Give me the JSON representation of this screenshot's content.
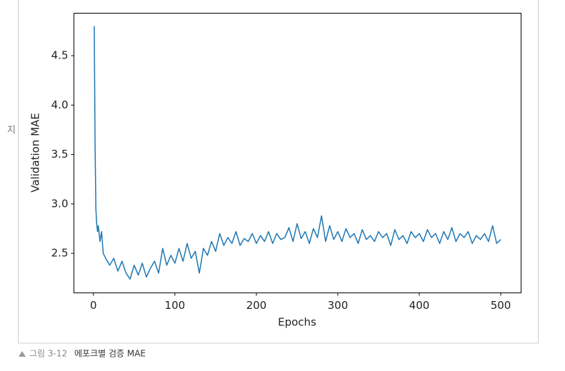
{
  "side_text": "지",
  "caption": {
    "label": "그림 3-12",
    "text": "에포크별 검증 MAE"
  },
  "chart_data": {
    "type": "line",
    "xlabel": "Epochs",
    "ylabel": "Validation MAE",
    "xlim": [
      -23.95,
      524.95
    ],
    "ylim": [
      2.1,
      4.93
    ],
    "xticks": [
      0,
      100,
      200,
      300,
      400,
      500
    ],
    "yticks": [
      2.5,
      {
        "value": 3,
        "label": "3.0"
      },
      3.5,
      {
        "value": 4,
        "label": "4.0"
      },
      4.5
    ],
    "x": [
      1,
      2,
      3,
      4,
      5,
      6,
      8,
      10,
      12,
      15,
      20,
      25,
      30,
      35,
      40,
      45,
      50,
      55,
      60,
      65,
      70,
      75,
      80,
      85,
      90,
      95,
      100,
      105,
      110,
      115,
      120,
      125,
      130,
      135,
      140,
      145,
      150,
      155,
      160,
      165,
      170,
      175,
      180,
      185,
      190,
      195,
      200,
      205,
      210,
      215,
      220,
      225,
      230,
      235,
      240,
      245,
      250,
      255,
      260,
      265,
      270,
      275,
      280,
      285,
      290,
      295,
      300,
      305,
      310,
      315,
      320,
      325,
      330,
      335,
      340,
      345,
      350,
      355,
      360,
      365,
      370,
      375,
      380,
      385,
      390,
      395,
      400,
      405,
      410,
      415,
      420,
      425,
      430,
      435,
      440,
      445,
      450,
      455,
      460,
      465,
      470,
      475,
      480,
      485,
      490,
      495,
      500
    ],
    "series": [
      {
        "color": "#1f77b4",
        "values": [
          4.8,
          3.6,
          2.95,
          2.8,
          2.72,
          2.78,
          2.62,
          2.72,
          2.5,
          2.45,
          2.38,
          2.45,
          2.32,
          2.42,
          2.3,
          2.24,
          2.38,
          2.28,
          2.4,
          2.26,
          2.35,
          2.42,
          2.3,
          2.55,
          2.38,
          2.48,
          2.4,
          2.55,
          2.42,
          2.6,
          2.45,
          2.52,
          2.3,
          2.55,
          2.48,
          2.62,
          2.52,
          2.7,
          2.58,
          2.66,
          2.6,
          2.72,
          2.58,
          2.65,
          2.62,
          2.7,
          2.6,
          2.68,
          2.62,
          2.72,
          2.6,
          2.7,
          2.64,
          2.66,
          2.76,
          2.62,
          2.8,
          2.65,
          2.72,
          2.6,
          2.75,
          2.66,
          2.88,
          2.62,
          2.78,
          2.64,
          2.72,
          2.62,
          2.75,
          2.66,
          2.7,
          2.6,
          2.74,
          2.64,
          2.68,
          2.62,
          2.72,
          2.66,
          2.7,
          2.58,
          2.74,
          2.64,
          2.68,
          2.6,
          2.72,
          2.66,
          2.7,
          2.62,
          2.74,
          2.66,
          2.7,
          2.6,
          2.72,
          2.64,
          2.76,
          2.62,
          2.7,
          2.66,
          2.72,
          2.6,
          2.68,
          2.64,
          2.7,
          2.62,
          2.78,
          2.6,
          2.64
        ]
      }
    ]
  }
}
